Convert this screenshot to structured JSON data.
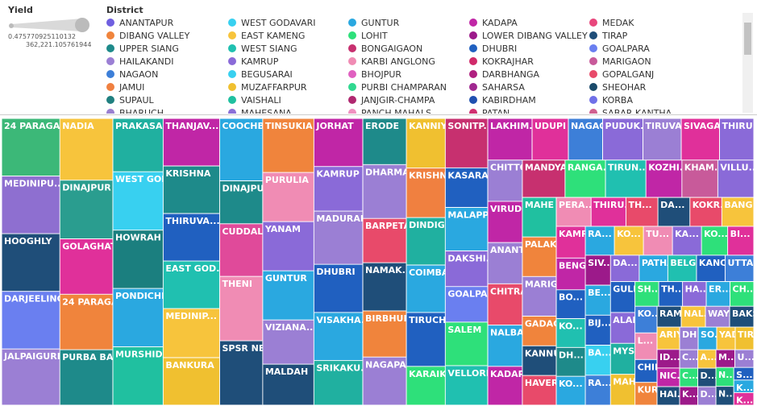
{
  "chart_data": {
    "type": "treemap",
    "size_legend": {
      "title": "Yield",
      "min": 0.475770925110132,
      "max": {
        "value": 362221.105761944,
        "label": "362,221.105761944"
      }
    },
    "color_legend": {
      "title": "District",
      "items": [
        {
          "name": "ANANTAPUR",
          "color": "#6f5fe0"
        },
        {
          "name": "WEST GODAVARI",
          "color": "#38d0f0"
        },
        {
          "name": "GUNTUR",
          "color": "#2aa8e0"
        },
        {
          "name": "KADAPA",
          "color": "#c026a6"
        },
        {
          "name": "MEDAK",
          "color": "#e8467c"
        },
        {
          "name": "DIBANG VALLEY",
          "color": "#f0843c"
        },
        {
          "name": "EAST KAMENG",
          "color": "#f7c43c"
        },
        {
          "name": "LOHIT",
          "color": "#2ee07a"
        },
        {
          "name": "LOWER DIBANG VALLEY",
          "color": "#9c1a8a"
        },
        {
          "name": "TIRAP",
          "color": "#1f4e79"
        },
        {
          "name": "UPPER SIANG",
          "color": "#1e8a8a"
        },
        {
          "name": "WEST SIANG",
          "color": "#20c0b0"
        },
        {
          "name": "BONGAIGAON",
          "color": "#c7306f"
        },
        {
          "name": "DHUBRI",
          "color": "#2060c0"
        },
        {
          "name": "GOALPARA",
          "color": "#6a7ff0"
        },
        {
          "name": "HAILAKANDI",
          "color": "#9b7fd4"
        },
        {
          "name": "KAMRUP",
          "color": "#8a6ad8"
        },
        {
          "name": "KARBI ANGLONG",
          "color": "#f08cb4"
        },
        {
          "name": "KOKRAJHAR",
          "color": "#d02a6a"
        },
        {
          "name": "MARIGAON",
          "color": "#c85a9a"
        },
        {
          "name": "NAGAON",
          "color": "#3d7fd8"
        },
        {
          "name": "BEGUSARAI",
          "color": "#38d0f0"
        },
        {
          "name": "BHOJPUR",
          "color": "#e060c0"
        },
        {
          "name": "DARBHANGA",
          "color": "#b02080"
        },
        {
          "name": "GOPALGANJ",
          "color": "#e84a6a"
        },
        {
          "name": "JAMUI",
          "color": "#f08040"
        },
        {
          "name": "MUZAFFARPUR",
          "color": "#f0c030"
        },
        {
          "name": "PURBI CHAMPARAN",
          "color": "#30d890"
        },
        {
          "name": "SAHARSA",
          "color": "#a02890"
        },
        {
          "name": "SHEOHAR",
          "color": "#1a4a6a"
        },
        {
          "name": "SUPAUL",
          "color": "#208080"
        },
        {
          "name": "VAISHALI",
          "color": "#20c0a0"
        },
        {
          "name": "JANJGIR-CHAMPA",
          "color": "#b02870"
        },
        {
          "name": "KABIRDHAM",
          "color": "#2050b0"
        },
        {
          "name": "KORBA",
          "color": "#7070e8"
        },
        {
          "name": "BHARUCH",
          "color": "#9a80d0"
        },
        {
          "name": "MAHESANA",
          "color": "#8a70d8"
        },
        {
          "name": "PANCH MAHALS",
          "color": "#f090c0"
        },
        {
          "name": "PATAN",
          "color": "#d03070"
        },
        {
          "name": "SABAR KANTHA",
          "color": "#d06090"
        }
      ]
    },
    "categories": [
      "24 PARAGA...",
      "MEDINIPU...",
      "HOOGHLY",
      "DARJEELING",
      "JALPAIGURI",
      "NADIA",
      "DINAJPUR ...",
      "GOLAGHAT",
      "24 PARAGA...",
      "PURBA BA...",
      "PRAKASAM",
      "WEST GOD...",
      "HOWRAH",
      "PONDICHE...",
      "MURSHIDA...",
      "THANJAV...",
      "KRISHNA",
      "THIRUVA...",
      "EAST GOD...",
      "MEDINIP...",
      "BANKURA",
      "COOCHBE...",
      "DINAJPU...",
      "CUDDAL...",
      "THENI",
      "SPSR NE...",
      "TINSUKIA",
      "PURULIA",
      "YANAM",
      "GUNTUR",
      "VIZIANA...",
      "MALDAH",
      "JORHAT",
      "KAMRUP",
      "MADURAI",
      "DHUBRI",
      "VISAKHA...",
      "SRIKAKU...",
      "ERODE",
      "DHARMA...",
      "BARPETA",
      "NAMAK...",
      "BIRBHUM",
      "NAGAPA...",
      "KANNIY...",
      "KRISHN...",
      "DINDIGUL",
      "COIMBA...",
      "TIRUCHI...",
      "KARAIKAL",
      "SONITP...",
      "KASARA...",
      "MALAPP...",
      "DAKSHI...",
      "GOALPA...",
      "SALEM",
      "VELLORE",
      "LAKHIM...",
      "UDUPI",
      "NAGAON",
      "PUDUK...",
      "TIRUVA...",
      "SIVAGA...",
      "THIRU...",
      "CHITTO...",
      "VIRUD...",
      "ANANT...",
      "CHITRA...",
      "NALBARI",
      "KADAPA",
      "MANDYA",
      "RANGA...",
      "TIRUN...",
      "KOZHI...",
      "KHAM...",
      "VILLU...",
      "MAHE",
      "PALAK...",
      "MARIG...",
      "GADAG",
      "KANNUR",
      "HAVERI",
      "PERA...",
      "THIRU...",
      "TH...",
      "DA...",
      "KOKR...",
      "BANG...",
      "KAMR...",
      "BENG...",
      "BO...",
      "KO...",
      "DH...",
      "KO...",
      "RA...",
      "KO...",
      "TU...",
      "KA...",
      "KO...",
      "BI...",
      "SIV...",
      "BE...",
      "BIJ...",
      "BA...",
      "RA...",
      "DA...",
      "PATHA...",
      "BELGA...",
      "KANC...",
      "UTTAR...",
      "GULBA...",
      "ALAPP...",
      "MYSORE",
      "MAHB...",
      "SH...",
      "TH...",
      "HA...",
      "ER...",
      "CH...",
      "KO...",
      "L...",
      "CHIR...",
      "KUR...",
      "RAM...",
      "NAL...",
      "WAY...",
      "BAKSA",
      "ARIY...",
      "ID...",
      "NIC...",
      "HAI...",
      "DH...",
      "SO...",
      "YAD...",
      "TIR...",
      "C...",
      "C...",
      "K...",
      "A...",
      "D...",
      "D...",
      "M...",
      "U...",
      "N...",
      "N...",
      "S...",
      "K...",
      "K..."
    ],
    "values": [
      40,
      40,
      40,
      40,
      39,
      39,
      37,
      35,
      35,
      35,
      32,
      35,
      35,
      35,
      35,
      32,
      32,
      32,
      32,
      33,
      32,
      32,
      22,
      27,
      33,
      33,
      33,
      30,
      30,
      30,
      27,
      25,
      28,
      26,
      31,
      28,
      28,
      26,
      24,
      28,
      23,
      25,
      24,
      25,
      23,
      23,
      22,
      22,
      25,
      18,
      25,
      20,
      22,
      18,
      18,
      22,
      20,
      22,
      18,
      17,
      20,
      19,
      19,
      17,
      17,
      17,
      17,
      17,
      17,
      16,
      19,
      18,
      18,
      16,
      16,
      16,
      16,
      16,
      16,
      12,
      12,
      12,
      12,
      12,
      11,
      11,
      11,
      11,
      11,
      11,
      10,
      10,
      10,
      10,
      10,
      10,
      10,
      10,
      9,
      9,
      9,
      9,
      9,
      9,
      9,
      9,
      9,
      9,
      9,
      9,
      9,
      9,
      9,
      9,
      7,
      7,
      7,
      7,
      7,
      7,
      7,
      6,
      6,
      6,
      6,
      6,
      6,
      6,
      5,
      5,
      5,
      5,
      5,
      5,
      5,
      4,
      4,
      4,
      4,
      4,
      4,
      4,
      4,
      4,
      4,
      3,
      3,
      3
    ],
    "colors": [
      "#3cb878",
      "#8e6fd0",
      "#1f4e79",
      "#6a7ff0",
      "#9b7fd4",
      "#f7c43c",
      "#2a9d8f",
      "#e0309a",
      "#f0843c",
      "#1e8a8a",
      "#20b0a0",
      "#38d0f0",
      "#1b7f7f",
      "#2aa8e0",
      "#20c0a0",
      "#c026a6",
      "#1e8a8a",
      "#2060c0",
      "#20c0b0",
      "#f7c43c",
      "#f0c030",
      "#2aa8e0",
      "#1e8a8a",
      "#e04a9a",
      "#f08cb4",
      "#1f4e79",
      "#f0843c",
      "#f08cb4",
      "#8a6ad8",
      "#2aa8e0",
      "#9b7fd4",
      "#1f4e79",
      "#c026a6",
      "#8a6ad8",
      "#9b7fd4",
      "#2060c0",
      "#2aa8e0",
      "#20b0a0",
      "#1e8a8a",
      "#9b7fd4",
      "#e84a6a",
      "#1f4e79",
      "#f0843c",
      "#9b7fd4",
      "#f0c030",
      "#f08040",
      "#20b0a0",
      "#2aa8e0",
      "#2060c0",
      "#2ee07a",
      "#c7306f",
      "#2060c0",
      "#2aa8e0",
      "#8a6ad8",
      "#6a7ff0",
      "#2ee07a",
      "#20c0b0",
      "#c026a6",
      "#e0309a",
      "#3d7fd8",
      "#8a6ad8",
      "#9b7fd4",
      "#e0309a",
      "#8a6ad8",
      "#9b7fd4",
      "#c026a6",
      "#9b7fd4",
      "#e84a6a",
      "#2aa8e0",
      "#c026a6",
      "#c7306f",
      "#2ee07a",
      "#20c0b0",
      "#c026a6",
      "#c85a9a",
      "#8a6ad8",
      "#20c0a0",
      "#f0843c",
      "#9b7fd4",
      "#f0843c",
      "#1f4e79",
      "#e84a6a",
      "#f08cb4",
      "#e0309a",
      "#e84a6a",
      "#1f4e79",
      "#e84a6a",
      "#f7c43c",
      "#e0309a",
      "#c026a6",
      "#2060c0",
      "#20c0b0",
      "#1e8a8a",
      "#2aa8e0",
      "#2aa8e0",
      "#f7c43c",
      "#f08cb4",
      "#8a6ad8",
      "#2ee07a",
      "#e0309a",
      "#9c1a8a",
      "#2aa8e0",
      "#2060c0",
      "#38d0f0",
      "#3d7fd8",
      "#8a6ad8",
      "#2aa8e0",
      "#20c0b0",
      "#2060c0",
      "#3d7fd8",
      "#2060c0",
      "#8a6ad8",
      "#20b0a0",
      "#f0c030",
      "#2ee07a",
      "#2060c0",
      "#8a6ad8",
      "#2aa8e0",
      "#2ee07a",
      "#3d7fd8",
      "#f08cb4",
      "#2060c0",
      "#f0843c",
      "#1f4e79",
      "#f7c43c",
      "#9b7fd4",
      "#1f4e79",
      "#f7c43c",
      "#9c1a8a",
      "#c026a6",
      "#1f4e79",
      "#9b7fd4",
      "#2aa8e0",
      "#f7c43c",
      "#f0c030",
      "#9b7fd4",
      "#2ee07a",
      "#9c1a8a",
      "#f7c43c",
      "#1f4e79",
      "#9b7fd4",
      "#9c1a8a",
      "#9b7fd4",
      "#2ee07a",
      "#1f4e79",
      "#2060c0",
      "#2aa8e0",
      "#e0309a"
    ]
  }
}
